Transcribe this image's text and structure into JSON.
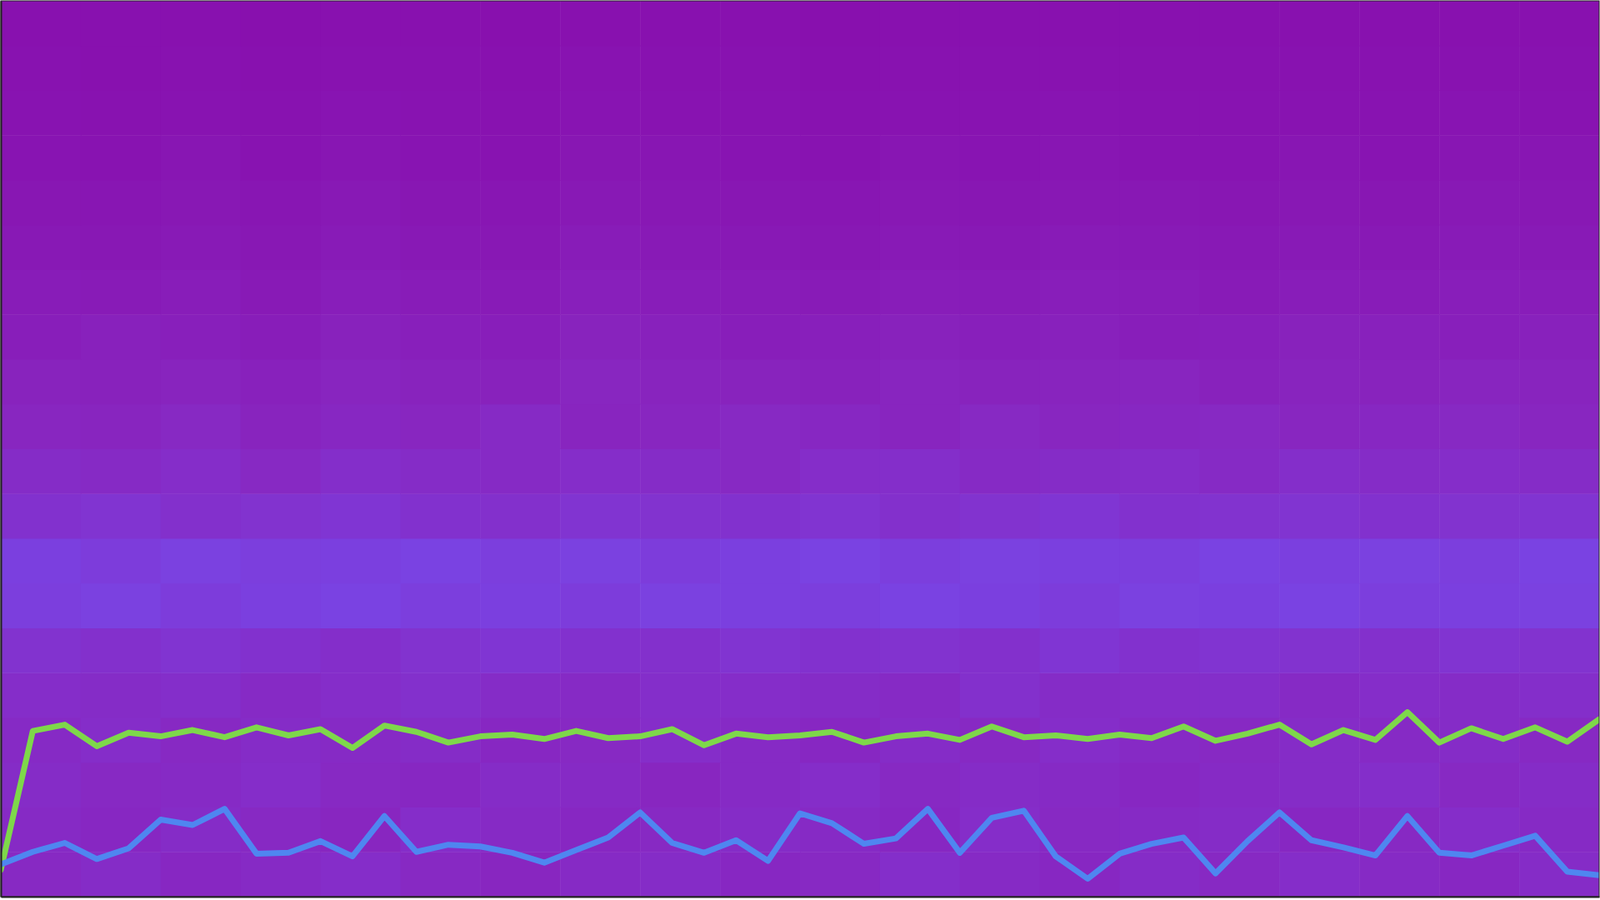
{
  "chart_data": {
    "type": "heatmap",
    "tick_labels": false,
    "xlim": [
      0,
      100
    ],
    "ylim": [
      0,
      100
    ],
    "zlim": [
      0,
      100
    ],
    "x_edges": [
      0,
      5,
      10,
      15,
      20,
      25,
      30,
      35,
      40,
      45,
      50,
      55,
      60,
      65,
      70,
      75,
      80,
      85,
      90,
      95,
      100
    ],
    "y_edges": [
      0,
      5,
      10,
      15,
      20,
      25,
      30,
      35,
      40,
      45,
      50,
      55,
      60,
      65,
      70,
      75,
      80,
      85,
      90,
      95,
      100
    ],
    "cells": [
      [
        22,
        24,
        21,
        23,
        25,
        22,
        20,
        23,
        24,
        21,
        22,
        26,
        23,
        21,
        24,
        22,
        25,
        23,
        21,
        24
      ],
      [
        23,
        21,
        24,
        22,
        20,
        25,
        23,
        21,
        22,
        24,
        23,
        21,
        25,
        22,
        23,
        24,
        21,
        22,
        25,
        23
      ],
      [
        24,
        22,
        23,
        25,
        22,
        21,
        24,
        23,
        20,
        23,
        25,
        22,
        24,
        23,
        21,
        23,
        24,
        26,
        22,
        24
      ],
      [
        23,
        25,
        22,
        24,
        23,
        24,
        21,
        22,
        25,
        23,
        21,
        24,
        22,
        25,
        23,
        22,
        24,
        23,
        24,
        22
      ],
      [
        25,
        24,
        26,
        23,
        25,
        27,
        24,
        23,
        26,
        25,
        24,
        23,
        27,
        24,
        25,
        26,
        23,
        25,
        24,
        26
      ],
      [
        29,
        27,
        30,
        28,
        26,
        29,
        31,
        28,
        27,
        30,
        28,
        29,
        27,
        31,
        28,
        30,
        29,
        27,
        30,
        29
      ],
      [
        37,
        39,
        36,
        38,
        40,
        37,
        38,
        36,
        39,
        38,
        37,
        40,
        38,
        36,
        39,
        38,
        40,
        37,
        38,
        39
      ],
      [
        38,
        36,
        39,
        37,
        38,
        40,
        37,
        39,
        36,
        38,
        40,
        37,
        39,
        38,
        37,
        40,
        38,
        39,
        37,
        40
      ],
      [
        28,
        30,
        27,
        29,
        31,
        28,
        27,
        30,
        29,
        28,
        30,
        27,
        29,
        31,
        28,
        29,
        30,
        28,
        29,
        30
      ],
      [
        24,
        23,
        25,
        22,
        26,
        24,
        23,
        25,
        24,
        22,
        25,
        26,
        23,
        24,
        25,
        23,
        26,
        24,
        25,
        24
      ],
      [
        20,
        19,
        22,
        18,
        21,
        20,
        23,
        19,
        20,
        22,
        21,
        19,
        22,
        20,
        21,
        22,
        20,
        21,
        22,
        20
      ],
      [
        17,
        16,
        18,
        15,
        19,
        17,
        16,
        20,
        18,
        17,
        16,
        19,
        17,
        18,
        19,
        16,
        18,
        17,
        19,
        18
      ],
      [
        13,
        15,
        14,
        12,
        16,
        14,
        13,
        17,
        15,
        13,
        14,
        16,
        14,
        15,
        13,
        14,
        16,
        15,
        14,
        15
      ],
      [
        11,
        10,
        12,
        9,
        13,
        11,
        10,
        14,
        12,
        11,
        10,
        12,
        11,
        13,
        12,
        10,
        12,
        11,
        13,
        12
      ],
      [
        8,
        7,
        9,
        7,
        10,
        8,
        7,
        11,
        9,
        8,
        7,
        9,
        8,
        10,
        9,
        8,
        9,
        8,
        10,
        9
      ],
      [
        6,
        5,
        7,
        5,
        8,
        6,
        5,
        8,
        7,
        6,
        5,
        7,
        6,
        7,
        7,
        6,
        7,
        6,
        8,
        7
      ],
      [
        4,
        3,
        5,
        3,
        5,
        4,
        3,
        6,
        5,
        4,
        3,
        5,
        4,
        5,
        4,
        4,
        5,
        4,
        5,
        5
      ],
      [
        3,
        2,
        3,
        2,
        4,
        3,
        2,
        4,
        3,
        3,
        2,
        3,
        3,
        4,
        3,
        3,
        3,
        3,
        4,
        3
      ],
      [
        2,
        1,
        2,
        1,
        2,
        2,
        1,
        3,
        2,
        2,
        1,
        2,
        2,
        2,
        2,
        2,
        2,
        2,
        2,
        2
      ],
      [
        1,
        1,
        1,
        0,
        1,
        1,
        0,
        1,
        1,
        1,
        0,
        1,
        1,
        1,
        1,
        1,
        1,
        1,
        1,
        1
      ]
    ],
    "x": [
      0,
      2,
      4,
      6,
      8,
      10,
      12,
      14,
      16,
      18,
      20,
      22,
      24,
      26,
      28,
      30,
      32,
      34,
      36,
      38,
      40,
      42,
      44,
      46,
      48,
      50,
      52,
      54,
      56,
      58,
      60,
      62,
      64,
      66,
      68,
      70,
      72,
      74,
      76,
      78,
      80,
      82,
      84,
      86,
      88,
      90,
      92,
      94,
      96,
      98,
      100
    ],
    "series": [
      {
        "type": "line",
        "color": "#7ed84a",
        "values": [
          3,
          18.5,
          19.2,
          16.8,
          18.3,
          17.9,
          18.6,
          17.8,
          18.9,
          18.0,
          18.7,
          16.6,
          19.1,
          18.4,
          17.2,
          17.9,
          18.1,
          17.6,
          18.5,
          17.7,
          17.9,
          18.7,
          16.9,
          18.2,
          17.8,
          18.0,
          18.4,
          17.2,
          17.9,
          18.2,
          17.5,
          19.0,
          17.8,
          18.0,
          17.6,
          18.1,
          17.7,
          19.0,
          17.4,
          18.2,
          19.2,
          17.0,
          18.6,
          17.5,
          20.6,
          17.2,
          18.8,
          17.6,
          18.9,
          17.3,
          19.8
        ]
      },
      {
        "type": "line",
        "color": "#4f86f0",
        "values": [
          3.6,
          5.0,
          6.0,
          4.2,
          5.4,
          8.6,
          8.0,
          9.8,
          4.8,
          4.9,
          6.2,
          4.5,
          9.0,
          5.0,
          5.8,
          5.6,
          4.9,
          3.8,
          5.2,
          6.6,
          9.4,
          6.0,
          4.9,
          6.3,
          4.0,
          9.3,
          8.2,
          5.9,
          6.5,
          9.8,
          4.9,
          8.8,
          9.6,
          4.5,
          2.0,
          4.8,
          5.9,
          6.6,
          2.6,
          6.2,
          9.4,
          6.3,
          5.5,
          4.6,
          9.0,
          4.9,
          4.6,
          5.7,
          6.8,
          2.8,
          2.4
        ]
      }
    ]
  }
}
